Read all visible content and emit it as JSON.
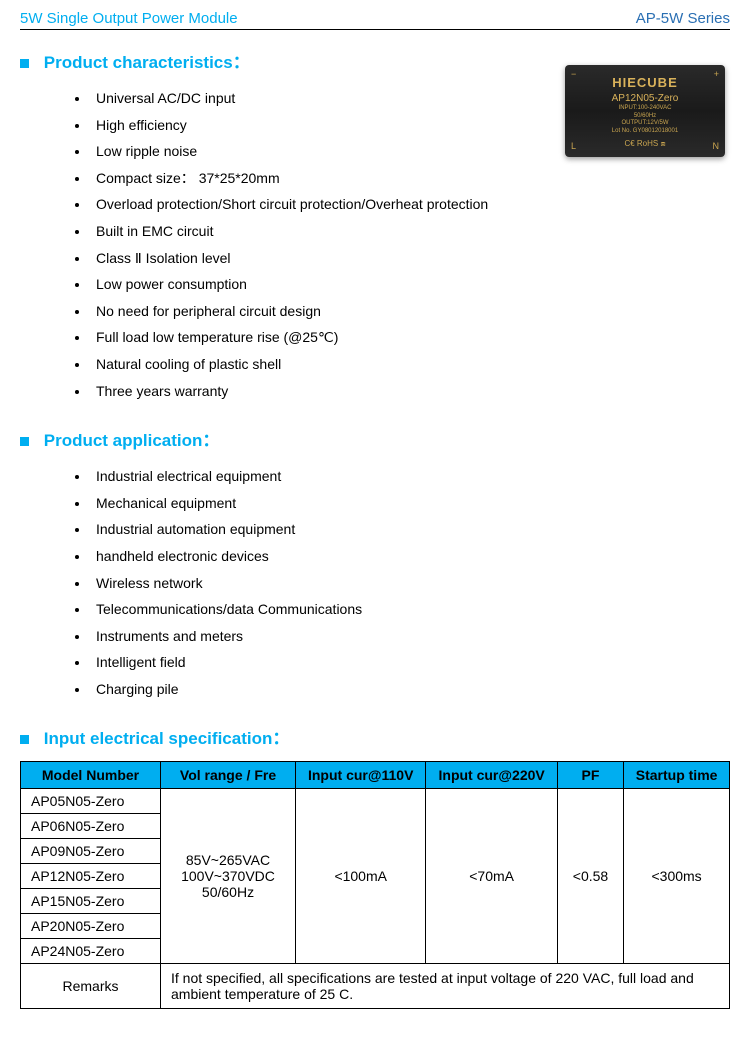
{
  "header": {
    "left": "5W Single Output Power Module",
    "right": "AP-5W Series"
  },
  "product_image": {
    "brand": "HIECUBE",
    "model": "AP12N05-Zero",
    "line1": "INPUT:100-240VAC",
    "line2": "50/60Hz",
    "line3": "OUTPUT:12V/5W",
    "line4": "Lot No. GY08012018001",
    "ce_rohs": "C€  RoHS ⧈",
    "plus": "+",
    "minus": "−",
    "L": "L",
    "N": "N"
  },
  "sections": {
    "characteristics": {
      "title": "Product characteristics：",
      "items": [
        "Universal AC/DC input",
        "High efficiency",
        "Low ripple noise",
        "Compact size：  37*25*20mm",
        "Overload protection/Short circuit protection/Overheat protection",
        "Built in EMC circuit",
        "Class Ⅱ Isolation level",
        "Low power consumption",
        "No need for peripheral circuit design",
        "Full load low temperature rise  (@25℃)",
        "Natural cooling of plastic shell",
        "Three years warranty"
      ]
    },
    "application": {
      "title": "Product application：",
      "items": [
        "Industrial electrical equipment",
        "Mechanical equipment",
        "Industrial automation equipment",
        "handheld electronic devices",
        "Wireless network",
        "Telecommunications/data Communications",
        "Instruments and meters",
        "Intelligent field",
        "Charging pile"
      ]
    },
    "input_spec": {
      "title": "Input electrical specification：",
      "columns": [
        "Model Number",
        "Vol range / Fre",
        "Input cur@110V",
        "Input cur@220V",
        "PF",
        "Startup time"
      ],
      "models": [
        "AP05N05-Zero",
        "AP06N05-Zero",
        "AP09N05-Zero",
        "AP12N05-Zero",
        "AP15N05-Zero",
        "AP20N05-Zero",
        "AP24N05-Zero"
      ],
      "vol_range": "85V~265VAC\n100V~370VDC\n50/60Hz",
      "cur110": "<100mA",
      "cur220": "<70mA",
      "pf": "<0.58",
      "startup": "<300ms",
      "remarks_label": "Remarks",
      "remarks_text": "If not specified, all specifications are tested at input voltage of 220 VAC, full load and ambient temperature of 25 C."
    }
  },
  "style": {
    "accent": "#00aef0",
    "header_right_color": "#2a6fb3",
    "text_color": "#000000",
    "border_color": "#000000",
    "table_header_bg": "#00aef0"
  }
}
